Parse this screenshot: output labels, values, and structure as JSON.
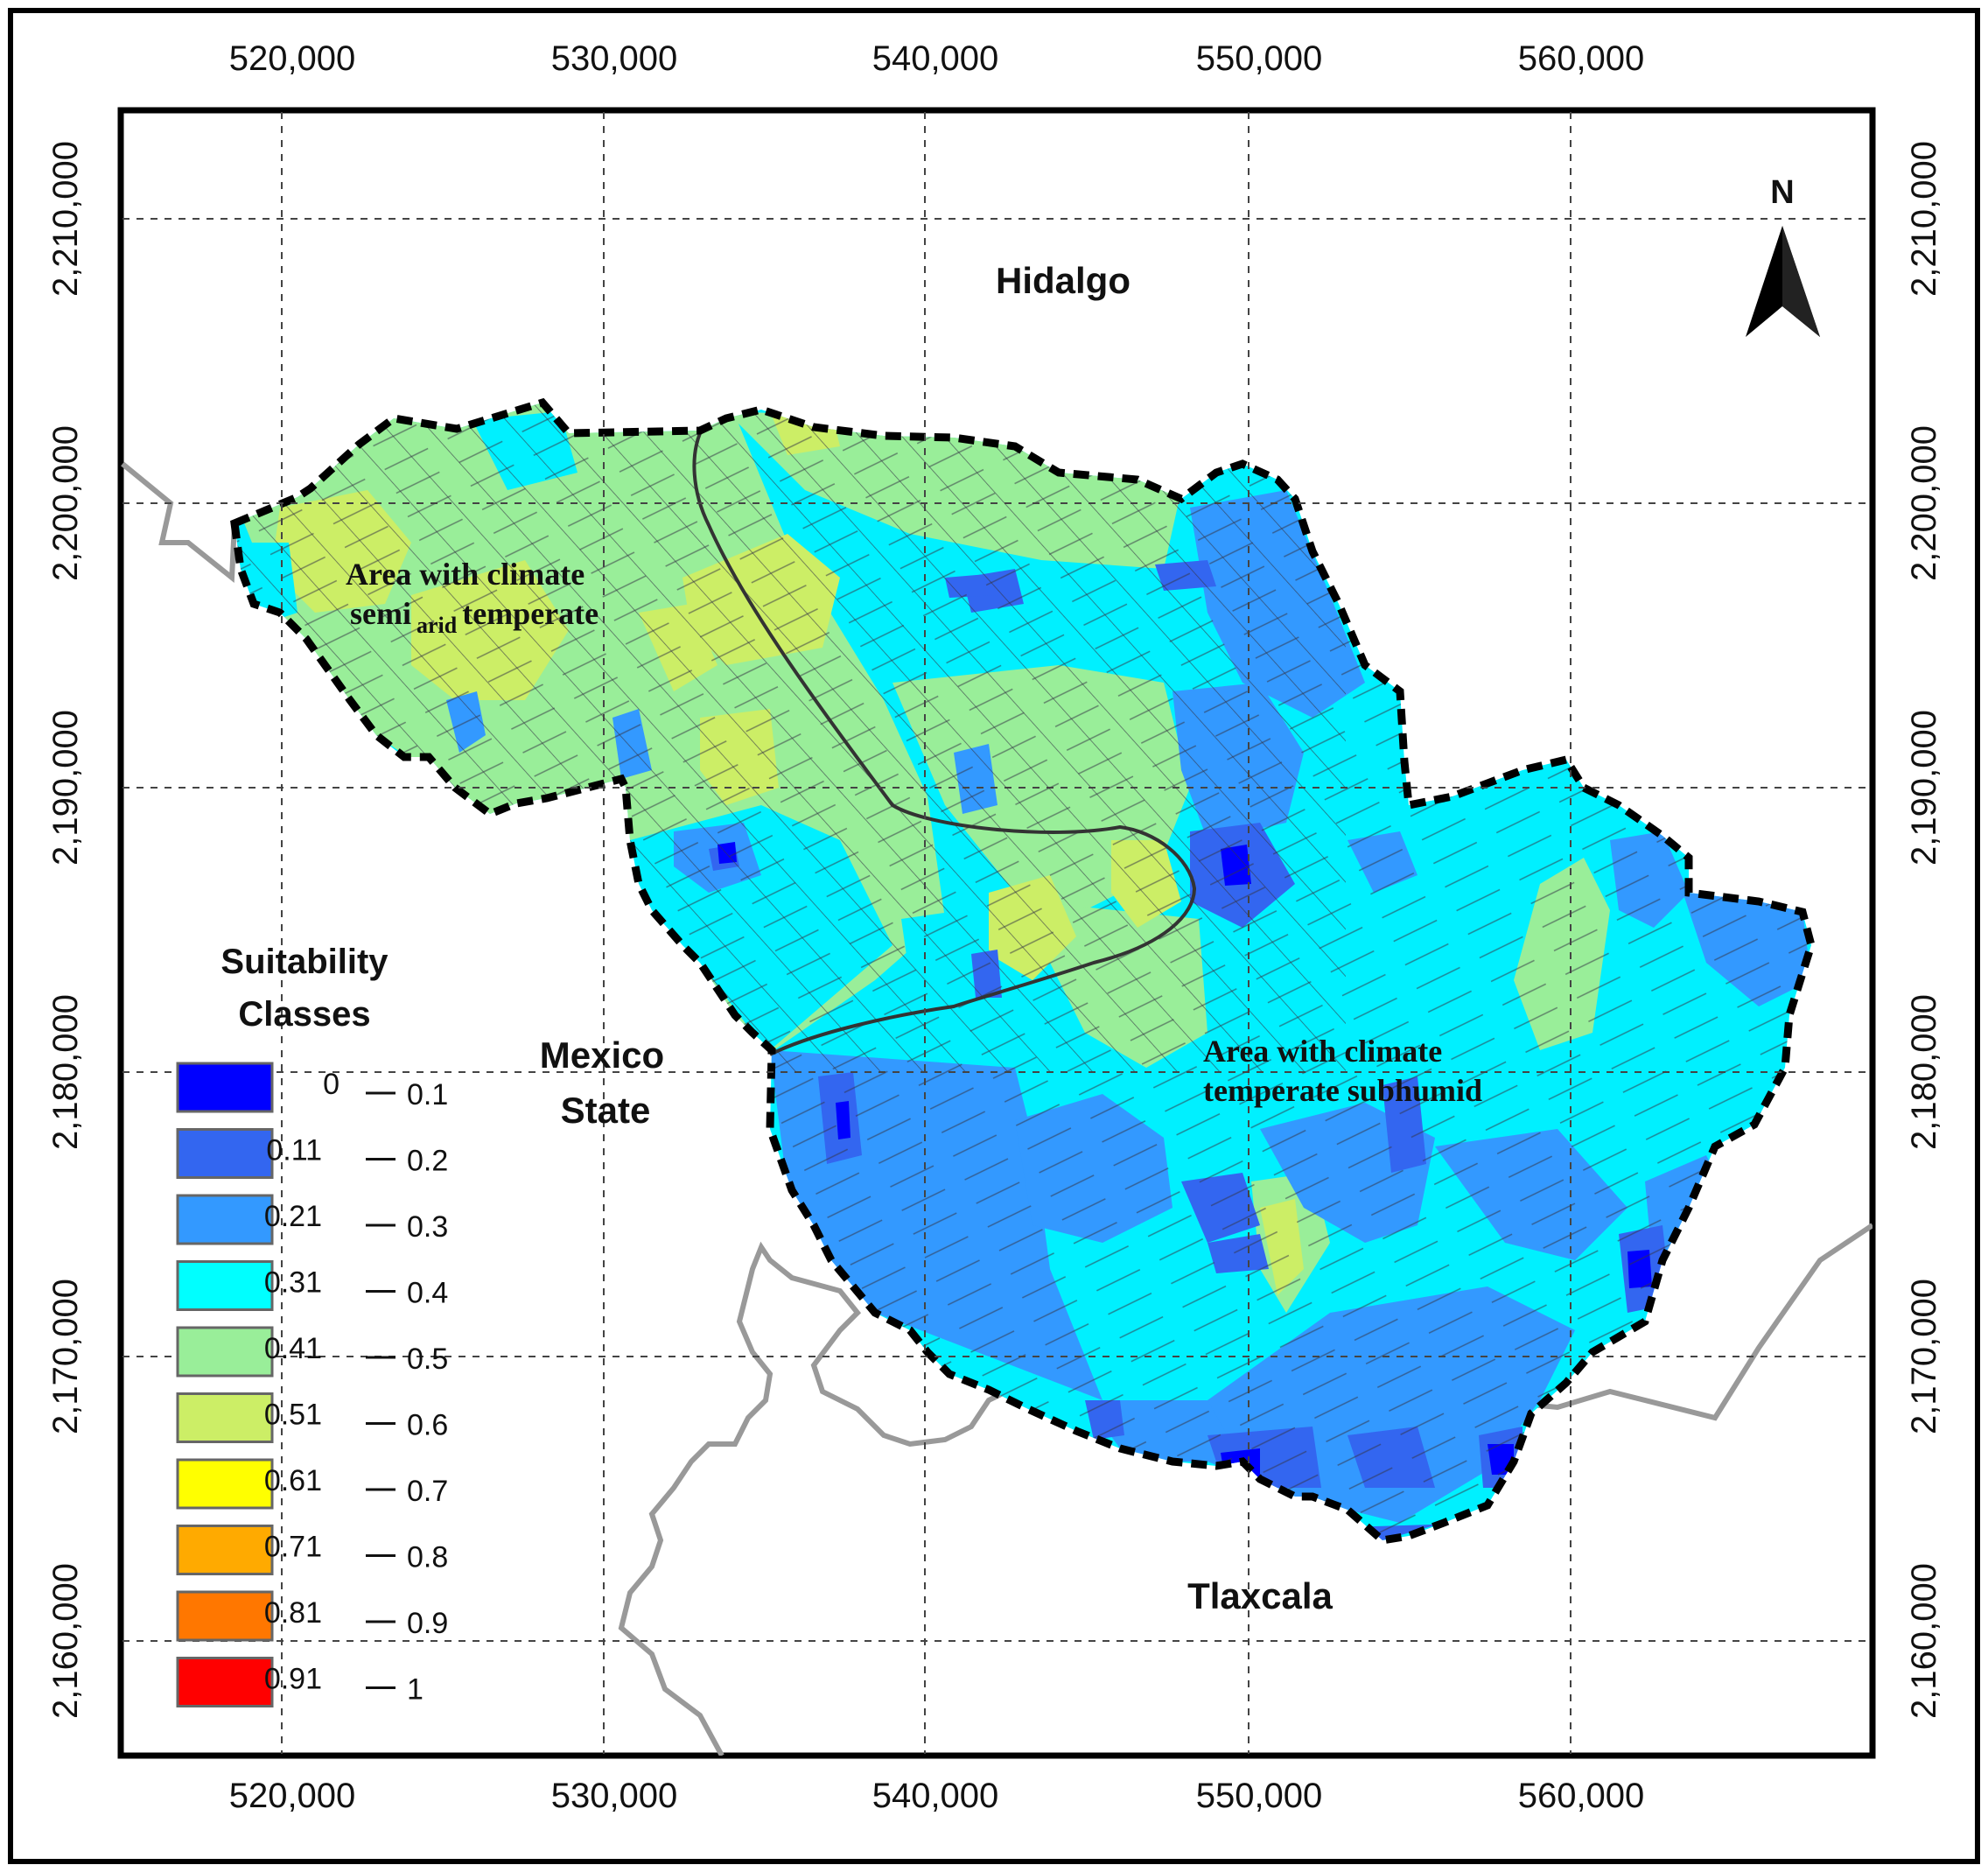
{
  "map": {
    "x_ticks": [
      "520,000",
      "530,000",
      "540,000",
      "550,000",
      "560,000"
    ],
    "y_ticks": [
      "2,210,000",
      "2,200,000",
      "2,190,000",
      "2,180,000",
      "2,170,000",
      "2,160,000"
    ],
    "regions": {
      "north": "Hidalgo",
      "west_line1": "Mexico",
      "west_line2": "State",
      "south": "Tlaxcala"
    },
    "climate_zones": {
      "semi_arid_line1": "Area with climate",
      "semi_arid_line2_a": "semi",
      "semi_arid_line2_sub": "arid",
      "semi_arid_line2_b": "temperate",
      "subhumid_line1": "Area with climate",
      "subhumid_line2": "temperate subhumid"
    },
    "north_arrow": {
      "label": "N",
      "icon": "north-arrow-icon"
    }
  },
  "legend": {
    "title_line1": "Suitability",
    "title_line2": "Classes",
    "classes": [
      {
        "min": "0",
        "max": "0.1",
        "color": "#0000ff"
      },
      {
        "min": "0.11",
        "max": "0.2",
        "color": "#3366f0"
      },
      {
        "min": "0.21",
        "max": "0.3",
        "color": "#3399ff"
      },
      {
        "min": "0.31",
        "max": "0.4",
        "color": "#00ffff"
      },
      {
        "min": "0.41",
        "max": "0.5",
        "color": "#99ee99"
      },
      {
        "min": "0.51",
        "max": "0.6",
        "color": "#ccee66"
      },
      {
        "min": "0.61",
        "max": "0.7",
        "color": "#ffff00"
      },
      {
        "min": "0.71",
        "max": "0.8",
        "color": "#ffaa00"
      },
      {
        "min": "0.81",
        "max": "0.9",
        "color": "#ff7700"
      },
      {
        "min": "0.91",
        "max": "1",
        "color": "#ff0000"
      }
    ]
  },
  "colors": {
    "boundary": "#000000",
    "state_border": "#999999",
    "grid": "#444444"
  }
}
